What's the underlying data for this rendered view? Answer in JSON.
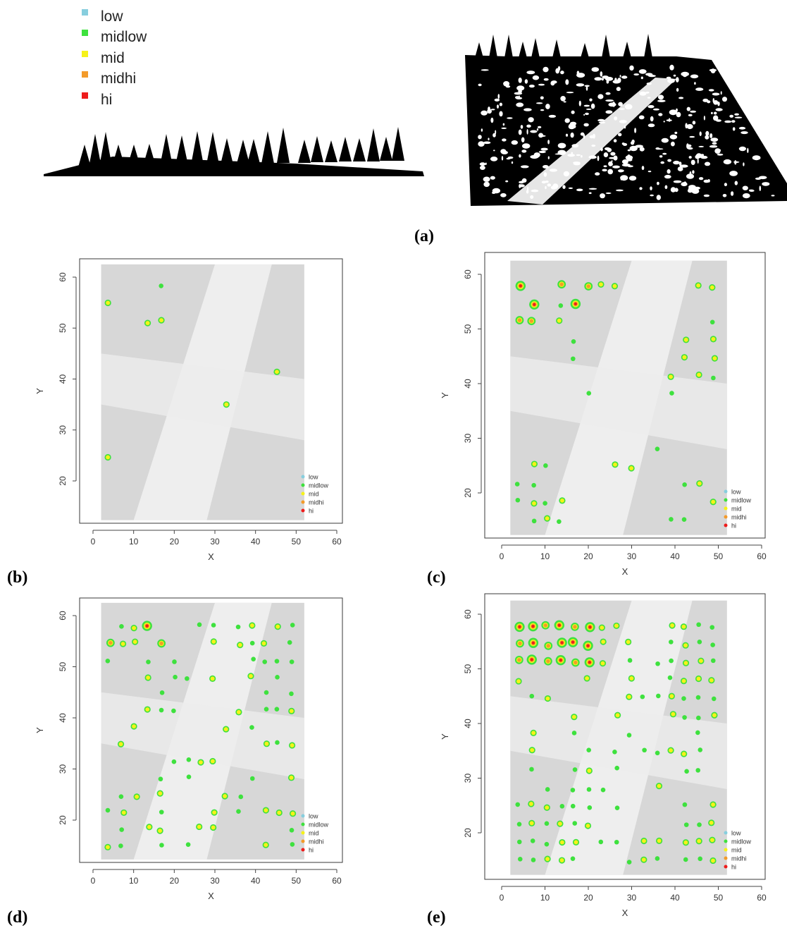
{
  "legend_main": {
    "items": [
      {
        "label": "low",
        "color": "#87cede"
      },
      {
        "label": "midlow",
        "color": "#3ee13e"
      },
      {
        "label": "mid",
        "color": "#f6f219"
      },
      {
        "label": "midhi",
        "color": "#f39b2a"
      },
      {
        "label": "hi",
        "color": "#ee1c1c"
      }
    ]
  },
  "panel_labels": {
    "a": "(a)",
    "b": "(b)",
    "c": "(c)",
    "d": "(d)",
    "e": "(e)"
  },
  "colors": {
    "point_cloud": "#000000",
    "plot_bg": "#d7d7d7",
    "frame": "#3a3a3a"
  },
  "chart_data": [
    {
      "id": "b",
      "type": "scatter",
      "title": "",
      "xlabel": "X",
      "ylabel": "Y",
      "xlim": [
        -3,
        60
      ],
      "ylim": [
        12,
        63
      ],
      "xticks": [
        "0",
        "10",
        "20",
        "30",
        "40",
        "50",
        "60"
      ],
      "yticks": [
        "20",
        "30",
        "40",
        "50",
        "60"
      ],
      "legend": [
        "low",
        "midlow",
        "mid",
        "midhi",
        "hi"
      ],
      "legend_position": "bottom-right",
      "density": "sparse"
    },
    {
      "id": "c",
      "type": "scatter",
      "title": "",
      "xlabel": "X",
      "ylabel": "Y",
      "xlim": [
        -3,
        62
      ],
      "ylim": [
        11,
        63
      ],
      "xticks": [
        "0",
        "10",
        "20",
        "30",
        "40",
        "50",
        "60"
      ],
      "yticks": [
        "20",
        "30",
        "40",
        "50",
        "60"
      ],
      "legend": [
        "low",
        "midlow",
        "mid",
        "midhi",
        "hi"
      ],
      "legend_position": "bottom-right",
      "density": "medium"
    },
    {
      "id": "d",
      "type": "scatter",
      "title": "",
      "xlabel": "X",
      "ylabel": "Y",
      "xlim": [
        -3,
        60
      ],
      "ylim": [
        12,
        63
      ],
      "xticks": [
        "0",
        "10",
        "20",
        "30",
        "40",
        "50",
        "60"
      ],
      "yticks": [
        "20",
        "30",
        "40",
        "50",
        "60"
      ],
      "legend": [
        "low",
        "midlow",
        "mid",
        "midhi",
        "hi"
      ],
      "legend_position": "bottom-right",
      "density": "dense"
    },
    {
      "id": "e",
      "type": "scatter",
      "title": "",
      "xlabel": "X",
      "ylabel": "Y",
      "xlim": [
        -3,
        62
      ],
      "ylim": [
        11,
        63
      ],
      "xticks": [
        "0",
        "10",
        "20",
        "30",
        "40",
        "50",
        "60"
      ],
      "yticks": [
        "20",
        "30",
        "40",
        "50",
        "60"
      ],
      "legend": [
        "low",
        "midlow",
        "mid",
        "midhi",
        "hi"
      ],
      "legend_position": "bottom-right",
      "density": "very-dense"
    }
  ]
}
